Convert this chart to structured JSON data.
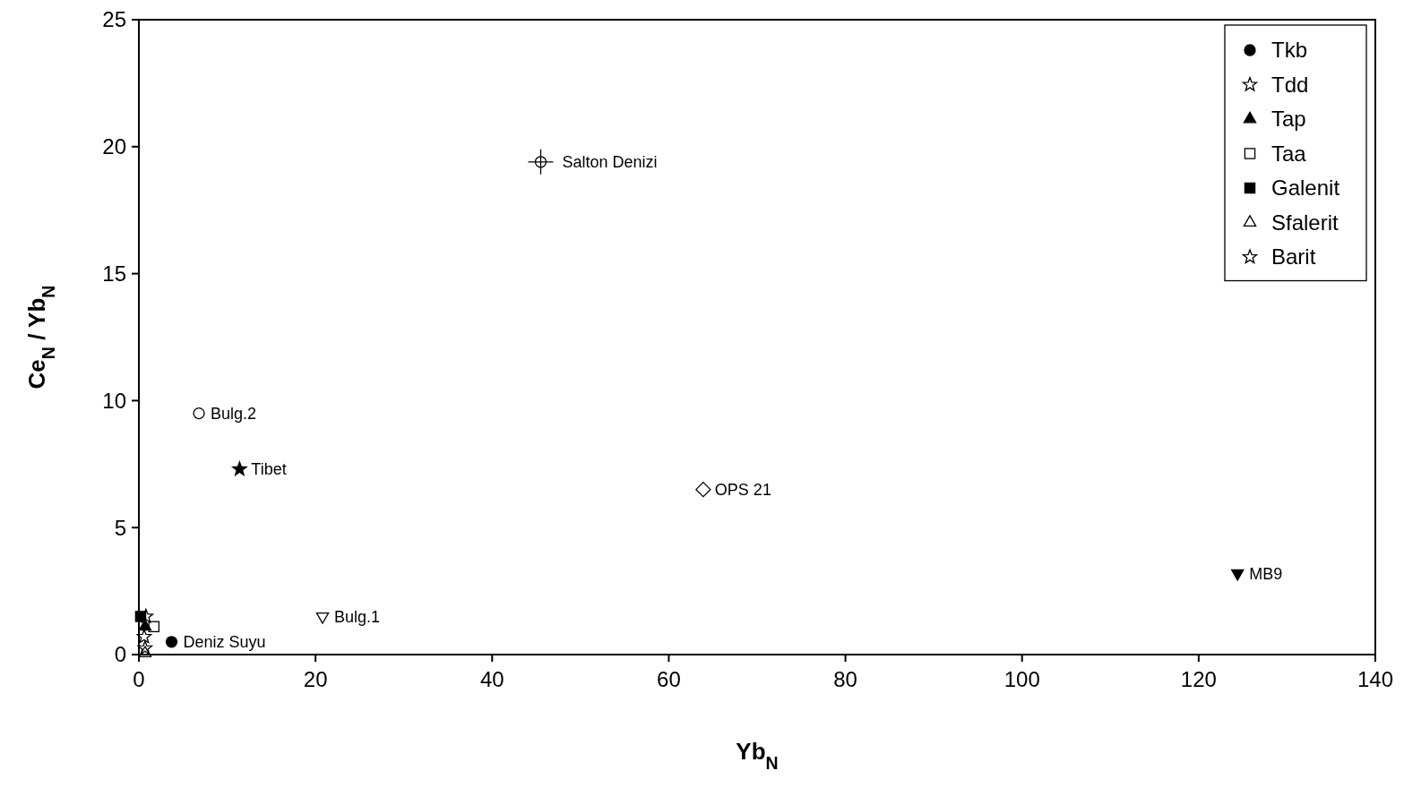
{
  "chart_data": {
    "type": "scatter",
    "xlabel": "Yb$_{N}$",
    "ylabel": "Ce$_{N}$ / Yb$_{N}$",
    "xlim": [
      0,
      140
    ],
    "xticks": [
      0,
      20,
      40,
      60,
      80,
      100,
      120,
      140
    ],
    "ylim": [
      0,
      25
    ],
    "yticks": [
      0,
      5,
      10,
      15,
      20,
      25
    ],
    "grid": false,
    "legend": "top right",
    "series": [
      {
        "name": "Tkb",
        "color": "#000000",
        "marker": "circle"
      },
      {
        "name": "Tdd",
        "color": "#000000",
        "marker": "star",
        "x": [
          0.8
        ],
        "values": [
          1.5
        ]
      },
      {
        "name": "Tap",
        "color": "#000000",
        "marker": "triangle",
        "x": [
          0.7
        ],
        "values": [
          1.1
        ]
      },
      {
        "name": "Taa",
        "color": "#000000",
        "marker": "square",
        "x": [
          1.7
        ],
        "values": [
          1.1
        ]
      },
      {
        "name": "Galenit",
        "color": "#000000",
        "marker": "square",
        "x": [
          0.2
        ],
        "values": [
          1.5
        ]
      },
      {
        "name": "Sfalerit",
        "color": "#000000",
        "marker": "triangle",
        "x": [
          0.7
        ],
        "values": [
          0.05
        ]
      },
      {
        "name": "Barit",
        "color": "#000000",
        "marker": "star",
        "x": [
          0.6,
          0.7
        ],
        "values": [
          0.7,
          0.25
        ]
      },
      {
        "color": "#000000",
        "marker": "circle",
        "x": [
          6.8
        ],
        "values": [
          9.5
        ]
      },
      {
        "color": "#000000",
        "marker": "star",
        "x": [
          11.4
        ],
        "values": [
          7.3
        ]
      },
      {
        "color": "#000000",
        "marker": "diamond",
        "x": [
          63.9
        ],
        "values": [
          6.5
        ]
      },
      {
        "color": "#000000",
        "marker": "circle",
        "x": [
          45.5
        ],
        "values": [
          19.4
        ]
      },
      {
        "color": "#000000",
        "marker": "triangle",
        "x": [
          124.4
        ],
        "values": [
          3.2
        ]
      },
      {
        "color": "#000000",
        "marker": "triangle",
        "x": [
          20.8
        ],
        "values": [
          1.5
        ]
      },
      {
        "color": "#000000",
        "marker": "circle",
        "x": [
          3.7
        ],
        "values": [
          0.5
        ]
      }
    ],
    "annotations": [
      {
        "text": "Bulg.2",
        "x": 6.8,
        "y": 9.5
      },
      {
        "text": "Tibet",
        "x": 11.4,
        "y": 7.3
      },
      {
        "text": "OPS 21",
        "x": 63.9,
        "y": 6.5
      },
      {
        "text": "Salton Denizi",
        "x": 45.5,
        "y": 19.4
      },
      {
        "text": "MB9",
        "x": 124.4,
        "y": 3.2
      },
      {
        "text": "Bulg.1",
        "x": 20.8,
        "y": 1.5
      },
      {
        "text": "Deniz Suyu",
        "x": 3.7,
        "y": 0.5
      }
    ]
  }
}
